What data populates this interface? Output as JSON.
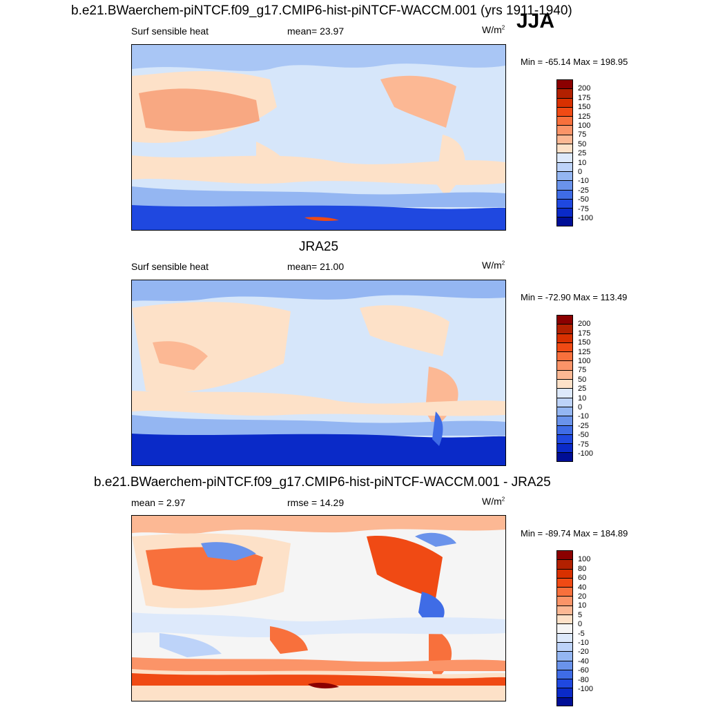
{
  "panel1": {
    "title": "b.e21.BWaerchem-piNTCF.f09_g17.CMIP6-hist-piNTCF-WACCM.001 (yrs 1911-1940)",
    "season": "JJA",
    "left": "Surf sensible heat",
    "center": "mean=  23.97",
    "units_base": "W/m",
    "units_exp": "2",
    "minmax": "Min = -65.14 Max = 198.95"
  },
  "panel2": {
    "title": "JRA25",
    "left": "Surf sensible heat",
    "center": "mean=  21.00",
    "units_base": "W/m",
    "units_exp": "2",
    "minmax": "Min = -72.90 Max = 113.49"
  },
  "panel3": {
    "title": "b.e21.BWaerchem-piNTCF.f09_g17.CMIP6-hist-piNTCF-WACCM.001 - JRA25",
    "left": "mean =   2.97",
    "center": "rmse =  14.29",
    "units_base": "W/m",
    "units_exp": "2",
    "minmax": "Min = -89.74 Max = 184.89"
  },
  "colorbar_abs": {
    "labels": [
      "200",
      "175",
      "150",
      "125",
      "100",
      "75",
      "50",
      "25",
      "10",
      "0",
      "-10",
      "-25",
      "-50",
      "-75",
      "-100"
    ],
    "colors": [
      "#8b0000",
      "#b22000",
      "#d83000",
      "#f04a14",
      "#f8703c",
      "#fb9468",
      "#fcb894",
      "#fde1c8",
      "#dde9fb",
      "#bdd3f9",
      "#94b6f2",
      "#6a93eb",
      "#3f6ce6",
      "#1f48e0",
      "#0a2ac8",
      "#000e96"
    ]
  },
  "colorbar_diff": {
    "labels": [
      "100",
      "80",
      "60",
      "40",
      "20",
      "10",
      "5",
      "0",
      "-5",
      "-10",
      "-20",
      "-40",
      "-60",
      "-80",
      "-100"
    ],
    "colors": [
      "#8b0000",
      "#b22000",
      "#d83000",
      "#f04a14",
      "#f8703c",
      "#fb9468",
      "#fcb894",
      "#fde1c8",
      "#f5f5f5",
      "#dde9fb",
      "#bdd3f9",
      "#94b6f2",
      "#6a93eb",
      "#3f6ce6",
      "#1f48e0",
      "#0a2ac8",
      "#000e96"
    ]
  }
}
